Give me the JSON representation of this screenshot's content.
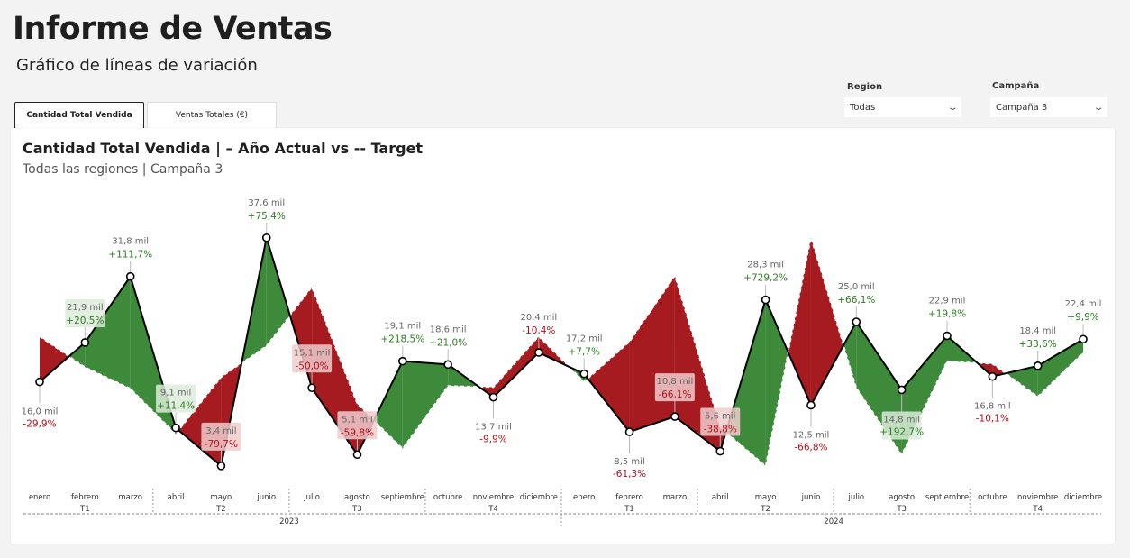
{
  "header": {
    "title": "Informe de Ventas",
    "subtitle": "Gráfico de líneas de variación"
  },
  "tabs": [
    {
      "label": "Cantidad Total Vendida",
      "active": true
    },
    {
      "label": "Ventas Totales (€)",
      "active": false
    }
  ],
  "filters": {
    "region": {
      "label": "Region",
      "value": "Todas"
    },
    "campaign": {
      "label": "Campaña",
      "value": "Campaña 3"
    }
  },
  "colors": {
    "positive_fill": "#3d8a3b",
    "negative_fill": "#a51b20",
    "positive_text": "#2d7d22",
    "negative_text": "#b3101b",
    "actual_line": "#000000",
    "target_line": "#ffffff"
  },
  "chart_data": {
    "type": "line",
    "title": "Cantidad Total Vendida | – Año Actual vs -- Target",
    "subtitle": "Todas las regiones | Campaña 3",
    "categories": [
      "enero",
      "febrero",
      "marzo",
      "abril",
      "mayo",
      "junio",
      "julio",
      "agosto",
      "septiembre",
      "octubre",
      "noviembre",
      "diciembre",
      "enero",
      "febrero",
      "marzo",
      "abril",
      "mayo",
      "junio",
      "julio",
      "agosto",
      "septiembre",
      "octubre",
      "noviembre",
      "diciembre"
    ],
    "quarters": [
      "T1",
      "T2",
      "T3",
      "T4",
      "T1",
      "T2",
      "T3",
      "T4"
    ],
    "years": [
      "2023",
      "2024"
    ],
    "unit_suffix": "mil",
    "series": [
      {
        "key": "actual",
        "style": "solid",
        "values": [
          16.0,
          21.9,
          31.8,
          9.1,
          3.4,
          37.6,
          15.1,
          5.1,
          19.1,
          18.6,
          13.7,
          20.4,
          17.2,
          8.5,
          10.8,
          5.6,
          28.3,
          12.5,
          25.0,
          14.8,
          22.9,
          16.8,
          18.4,
          22.4
        ]
      },
      {
        "key": "target",
        "style": "dashed",
        "values": [
          22.8,
          18.2,
          15.0,
          8.2,
          16.7,
          21.4,
          30.2,
          12.7,
          6.0,
          15.4,
          15.2,
          22.8,
          16.0,
          22.0,
          31.9,
          9.2,
          3.4,
          37.6,
          15.1,
          5.1,
          19.1,
          18.7,
          13.8,
          20.4
        ]
      }
    ],
    "value_labels": [
      "16,0 mil",
      "21,9 mil",
      "31,8 mil",
      "9,1 mil",
      "3,4 mil",
      "37,6 mil",
      "15,1 mil",
      "5,1 mil",
      "19,1 mil",
      "18,6 mil",
      "13,7 mil",
      "20,4 mil",
      "17,2 mil",
      "8,5 mil",
      "10,8 mil",
      "5,6 mil",
      "28,3 mil",
      "12,5 mil",
      "25,0 mil",
      "14,8 mil",
      "22,9 mil",
      "16,8 mil",
      "18,4 mil",
      "22,4 mil"
    ],
    "variance_labels": [
      "-29,9%",
      "+20,5%",
      "+111,7%",
      "+11,4%",
      "-79,7%",
      "+75,4%",
      "-50,0%",
      "-59,8%",
      "+218,5%",
      "+21,0%",
      "-9,9%",
      "-10,4%",
      "+7,7%",
      "-61,3%",
      "-66,1%",
      "-38,8%",
      "+729,2%",
      "-66,8%",
      "+66,1%",
      "+192,7%",
      "+19,8%",
      "-10,1%",
      "+33,6%",
      "+9,9%"
    ],
    "ylim": [
      0,
      40
    ],
    "grid": false,
    "legend": "none"
  }
}
